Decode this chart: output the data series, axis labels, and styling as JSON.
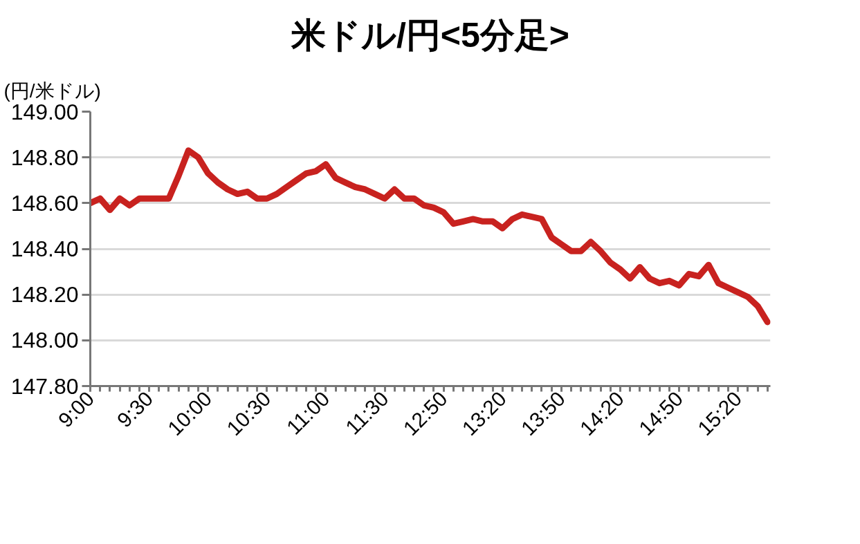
{
  "chart_data": {
    "type": "line",
    "title": "米ドル/円<5分足>",
    "ylabel": "(円/米ドル)",
    "categories": [
      "9:00",
      null,
      null,
      null,
      null,
      null,
      "9:30",
      null,
      null,
      null,
      null,
      null,
      "10:00",
      null,
      null,
      null,
      null,
      null,
      "10:30",
      null,
      null,
      null,
      null,
      null,
      "11:00",
      null,
      null,
      null,
      null,
      null,
      "11:30",
      null,
      null,
      null,
      null,
      null,
      "12:50",
      null,
      null,
      null,
      null,
      null,
      "13:20",
      null,
      null,
      null,
      null,
      null,
      "13:50",
      null,
      null,
      null,
      null,
      null,
      "14:20",
      null,
      null,
      null,
      null,
      null,
      "14:50",
      null,
      null,
      null,
      null,
      null,
      "15:20",
      null,
      null,
      null
    ],
    "series": [
      {
        "color": "#c8221f",
        "values": [
          148.6,
          148.62,
          148.57,
          148.62,
          148.59,
          148.62,
          148.62,
          148.62,
          148.62,
          148.72,
          148.83,
          148.8,
          148.73,
          148.69,
          148.66,
          148.64,
          148.65,
          148.62,
          148.62,
          148.64,
          148.67,
          148.7,
          148.73,
          148.74,
          148.77,
          148.71,
          148.69,
          148.67,
          148.66,
          148.64,
          148.62,
          148.66,
          148.62,
          148.62,
          148.59,
          148.58,
          148.56,
          148.51,
          148.52,
          148.53,
          148.52,
          148.52,
          148.49,
          148.53,
          148.55,
          148.54,
          148.53,
          148.45,
          148.42,
          148.39,
          148.39,
          148.43,
          148.39,
          148.34,
          148.31,
          148.27,
          148.32,
          148.27,
          148.25,
          148.26,
          148.24,
          148.29,
          148.28,
          148.33,
          148.25,
          148.23,
          148.21,
          148.19,
          148.15,
          148.08
        ]
      }
    ],
    "ylim": [
      147.8,
      149.0
    ],
    "yticks": [
      {
        "value": 147.8,
        "label": "147.80"
      },
      {
        "value": 148.0,
        "label": "148.00"
      },
      {
        "value": 148.2,
        "label": "148.20"
      },
      {
        "value": 148.4,
        "label": "148.40"
      },
      {
        "value": 148.6,
        "label": "148.60"
      },
      {
        "value": 148.8,
        "label": "148.80"
      },
      {
        "value": 149.0,
        "label": "149.00"
      }
    ],
    "grid": "y",
    "marker": "none",
    "line_style": "solid"
  }
}
